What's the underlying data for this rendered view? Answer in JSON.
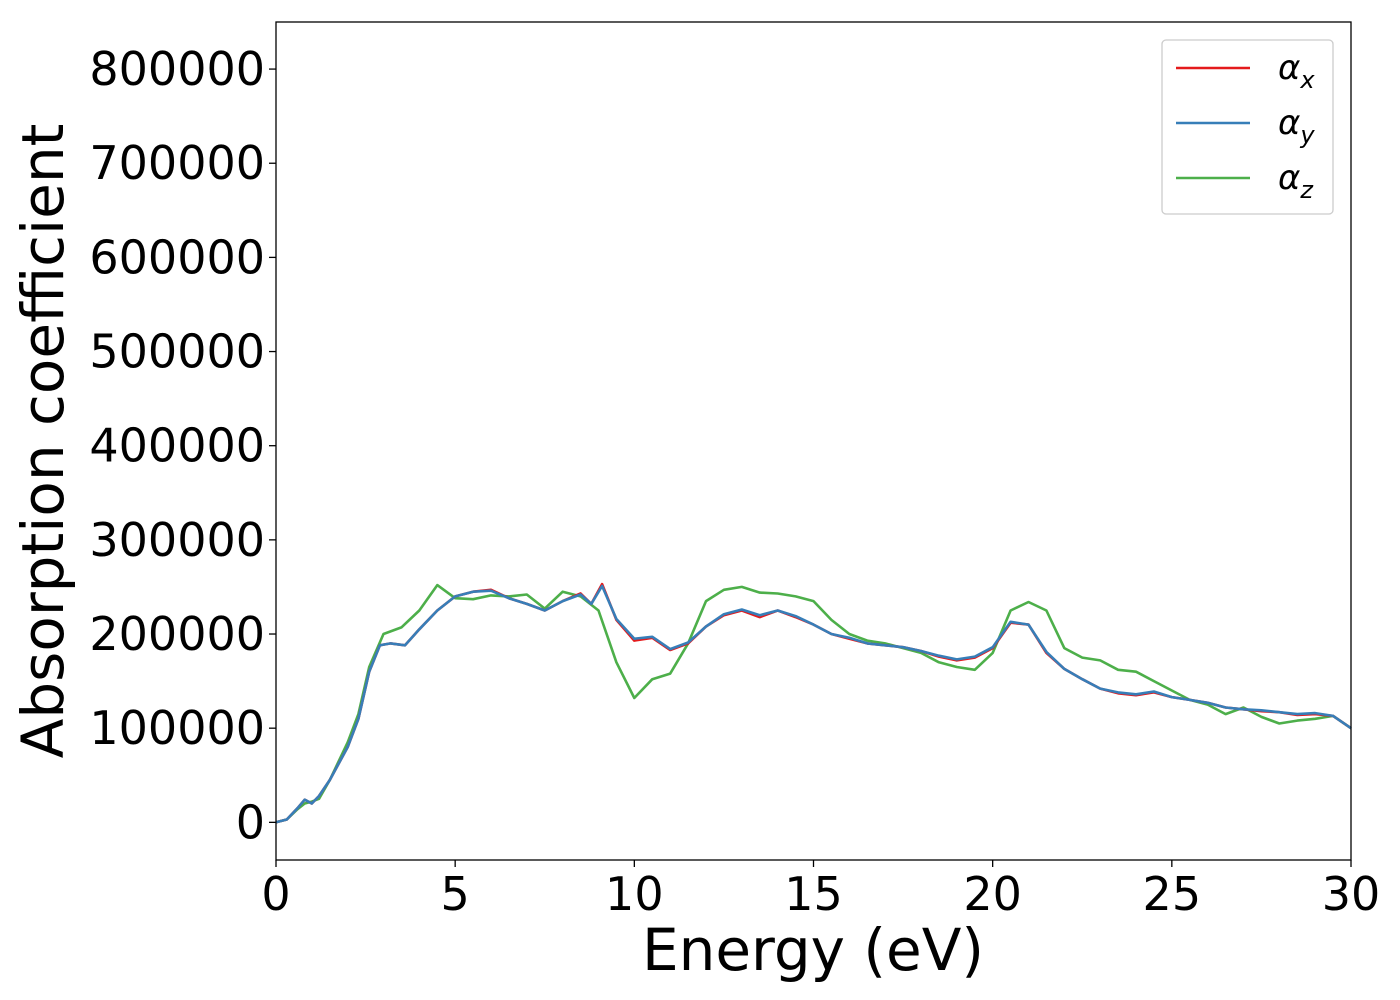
{
  "chart_data": {
    "type": "line",
    "title": "",
    "xlabel": "Energy (eV)",
    "ylabel": "Absorption coefficient",
    "xlim": [
      0,
      30
    ],
    "ylim": [
      -40000,
      850000
    ],
    "xticks": [
      0,
      5,
      10,
      15,
      20,
      25,
      30
    ],
    "yticks": [
      0,
      100000,
      200000,
      300000,
      400000,
      500000,
      600000,
      700000,
      800000
    ],
    "xtick_labels": [
      "0",
      "5",
      "10",
      "15",
      "20",
      "25",
      "30"
    ],
    "ytick_labels": [
      "0",
      "100000",
      "200000",
      "300000",
      "400000",
      "500000",
      "600000",
      "700000",
      "800000"
    ],
    "grid": false,
    "legend_position": "top-right",
    "series": [
      {
        "name": "αx",
        "legend_base": "α",
        "legend_sub": "x",
        "color": "#e41a1c",
        "x": [
          0,
          0.3,
          0.6,
          0.8,
          1.0,
          1.2,
          1.5,
          2.0,
          2.3,
          2.6,
          2.9,
          3.2,
          3.6,
          4.0,
          4.5,
          5.0,
          5.5,
          6.0,
          6.5,
          7.0,
          7.5,
          8.0,
          8.5,
          8.8,
          9.1,
          9.5,
          10.0,
          10.5,
          11.0,
          11.5,
          12.0,
          12.5,
          13.0,
          13.5,
          14.0,
          14.5,
          15.0,
          15.5,
          16.0,
          16.5,
          17.0,
          17.5,
          18.0,
          18.5,
          19.0,
          19.5,
          20.0,
          20.5,
          21.0,
          21.5,
          22.0,
          22.5,
          23.0,
          23.5,
          24.0,
          24.5,
          25.0,
          25.5,
          26.0,
          26.5,
          27.0,
          27.5,
          28.0,
          28.5,
          29.0,
          29.5,
          30.0
        ],
        "y": [
          0,
          3000,
          15000,
          24000,
          20000,
          28000,
          45000,
          80000,
          110000,
          160000,
          188000,
          190000,
          188000,
          205000,
          225000,
          240000,
          245000,
          247000,
          238000,
          232000,
          225000,
          235000,
          243000,
          232000,
          253000,
          215000,
          193000,
          196000,
          183000,
          190000,
          208000,
          220000,
          225000,
          218000,
          225000,
          218000,
          210000,
          200000,
          195000,
          190000,
          188000,
          186000,
          182000,
          176000,
          172000,
          175000,
          185000,
          212000,
          210000,
          180000,
          163000,
          152000,
          142000,
          137000,
          135000,
          138000,
          133000,
          130000,
          127000,
          122000,
          120000,
          118000,
          117000,
          114000,
          115000,
          113000,
          100000
        ]
      },
      {
        "name": "αy",
        "legend_base": "α",
        "legend_sub": "y",
        "color": "#377eb8",
        "x": [
          0,
          0.3,
          0.6,
          0.8,
          1.0,
          1.2,
          1.5,
          2.0,
          2.3,
          2.6,
          2.9,
          3.2,
          3.6,
          4.0,
          4.5,
          5.0,
          5.5,
          6.0,
          6.5,
          7.0,
          7.5,
          8.0,
          8.5,
          8.8,
          9.1,
          9.5,
          10.0,
          10.5,
          11.0,
          11.5,
          12.0,
          12.5,
          13.0,
          13.5,
          14.0,
          14.5,
          15.0,
          15.5,
          16.0,
          16.5,
          17.0,
          17.5,
          18.0,
          18.5,
          19.0,
          19.5,
          20.0,
          20.5,
          21.0,
          21.5,
          22.0,
          22.5,
          23.0,
          23.5,
          24.0,
          24.5,
          25.0,
          25.5,
          26.0,
          26.5,
          27.0,
          27.5,
          28.0,
          28.5,
          29.0,
          29.5,
          30.0
        ],
        "y": [
          0,
          3000,
          15000,
          24000,
          20000,
          28000,
          45000,
          80000,
          110000,
          160000,
          188000,
          190000,
          188000,
          205000,
          225000,
          240000,
          245000,
          246000,
          238000,
          232000,
          225000,
          235000,
          242000,
          232000,
          251000,
          216000,
          195000,
          197000,
          184000,
          191000,
          208000,
          221000,
          226000,
          220000,
          225000,
          219000,
          210000,
          200000,
          196000,
          190000,
          188000,
          186000,
          182000,
          177000,
          173000,
          176000,
          186000,
          213000,
          210000,
          181000,
          163000,
          152000,
          142000,
          138000,
          136000,
          139000,
          133000,
          130000,
          127000,
          122000,
          120000,
          119000,
          117000,
          115000,
          116000,
          113000,
          100000
        ]
      },
      {
        "name": "αz",
        "legend_base": "α",
        "legend_sub": "z",
        "color": "#4daf4a",
        "x": [
          0,
          0.3,
          0.6,
          0.8,
          1.0,
          1.2,
          1.5,
          2.0,
          2.3,
          2.6,
          3.0,
          3.5,
          4.0,
          4.5,
          5.0,
          5.5,
          6.0,
          6.5,
          7.0,
          7.5,
          8.0,
          8.5,
          9.0,
          9.5,
          10.0,
          10.5,
          11.0,
          11.5,
          12.0,
          12.5,
          13.0,
          13.5,
          14.0,
          14.5,
          15.0,
          15.5,
          16.0,
          16.5,
          17.0,
          17.5,
          18.0,
          18.5,
          19.0,
          19.5,
          20.0,
          20.5,
          21.0,
          21.5,
          22.0,
          22.5,
          23.0,
          23.5,
          24.0,
          24.5,
          25.0,
          25.5,
          26.0,
          26.5,
          27.0,
          27.5,
          28.0,
          28.5,
          29.0,
          29.5,
          30.0
        ],
        "y": [
          0,
          3000,
          14000,
          20000,
          22000,
          25000,
          45000,
          85000,
          115000,
          165000,
          200000,
          207000,
          225000,
          252000,
          238000,
          237000,
          241000,
          240000,
          242000,
          227000,
          245000,
          240000,
          225000,
          170000,
          132000,
          152000,
          158000,
          190000,
          235000,
          247000,
          250000,
          244000,
          243000,
          240000,
          235000,
          215000,
          200000,
          193000,
          190000,
          185000,
          180000,
          170000,
          165000,
          162000,
          180000,
          225000,
          234000,
          225000,
          185000,
          175000,
          172000,
          162000,
          160000,
          150000,
          140000,
          130000,
          125000,
          115000,
          122000,
          112000,
          105000,
          108000,
          110000,
          113000,
          100000
        ]
      }
    ]
  }
}
